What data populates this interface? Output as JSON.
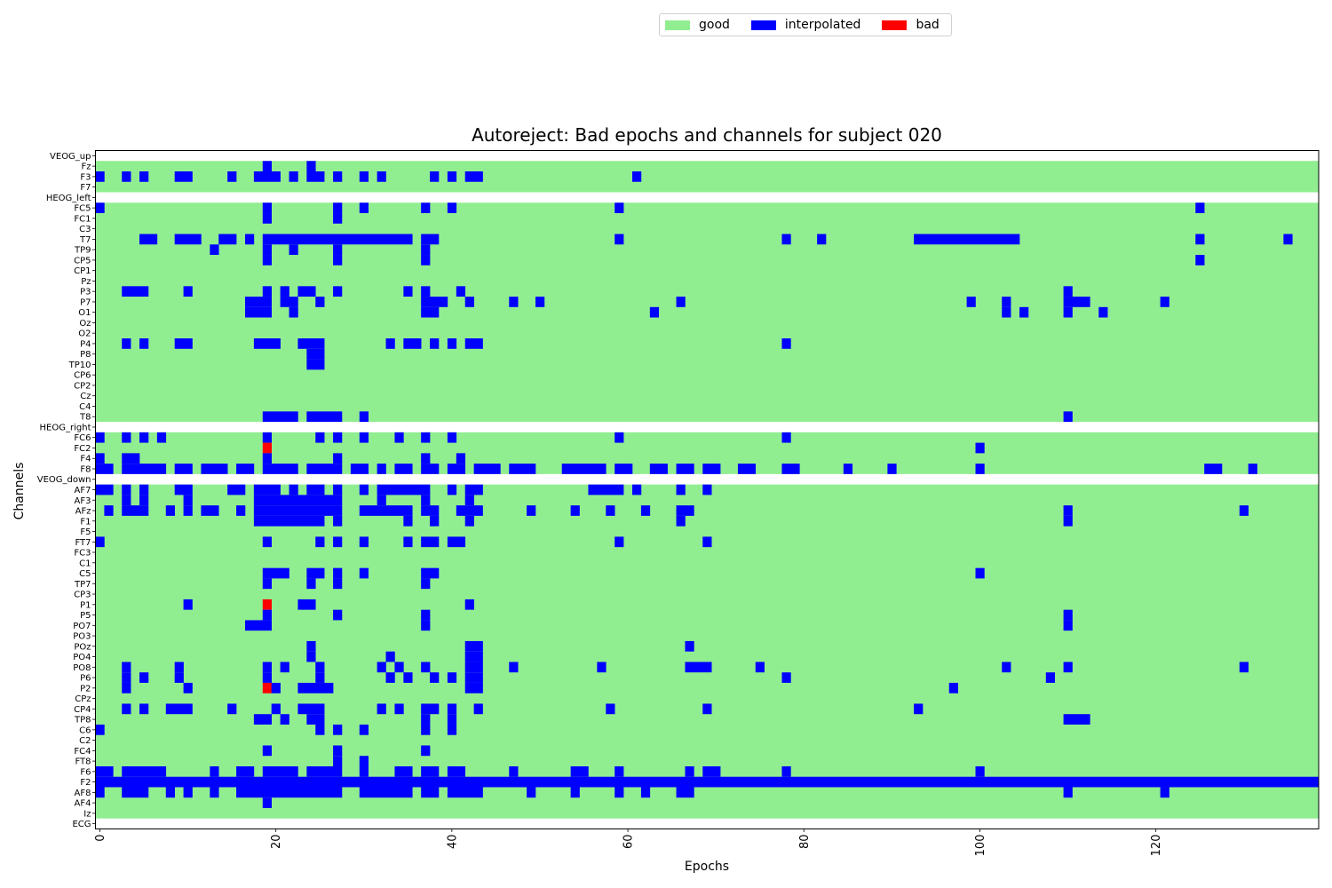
{
  "legend": {
    "items": [
      {
        "label": "good",
        "color": "#90ee90"
      },
      {
        "label": "interpolated",
        "color": "#0000ff"
      },
      {
        "label": "bad",
        "color": "#ff0000"
      }
    ]
  },
  "chart_data": {
    "type": "heatmap",
    "title": "Autoreject: Bad epochs and channels for subject 020",
    "xlabel": "Epochs",
    "ylabel": "Channels",
    "n_epochs": 139,
    "x_ticks": [
      0,
      20,
      40,
      60,
      80,
      100,
      120
    ],
    "channels": [
      "VEOG_up",
      "Fz",
      "F3",
      "F7",
      "HEOG_left",
      "FC5",
      "FC1",
      "C3",
      "T7",
      "TP9",
      "CP5",
      "CP1",
      "Pz",
      "P3",
      "P7",
      "O1",
      "Oz",
      "O2",
      "P4",
      "P8",
      "TP10",
      "CP6",
      "CP2",
      "Cz",
      "C4",
      "T8",
      "HEOG_right",
      "FC6",
      "FC2",
      "F4",
      "F8",
      "VEOG_down",
      "AF7",
      "AF3",
      "AFz",
      "F1",
      "F5",
      "FT7",
      "FC3",
      "C1",
      "C5",
      "TP7",
      "CP3",
      "P1",
      "P5",
      "PO7",
      "PO3",
      "POz",
      "PO4",
      "PO8",
      "P6",
      "P2",
      "CPz",
      "CP4",
      "TP8",
      "C6",
      "C2",
      "FC4",
      "FT8",
      "F6",
      "F2",
      "AF8",
      "AF4",
      "Iz",
      "ECG"
    ],
    "colors": {
      "good": "#90ee90",
      "interpolated": "#0000ff",
      "bad": "#ff0000",
      "excluded": "#ffffff"
    },
    "excluded_channels": [
      "VEOG_up",
      "HEOG_left",
      "HEOG_right",
      "VEOG_down",
      "ECG"
    ],
    "interpolated": {
      "Fz": [
        19,
        24
      ],
      "F3": [
        0,
        3,
        5,
        9,
        10,
        15,
        18,
        19,
        20,
        22,
        24,
        25,
        27,
        30,
        32,
        38,
        40,
        42,
        43,
        61
      ],
      "FC5": [
        0,
        19,
        27,
        30,
        37,
        40,
        59,
        125
      ],
      "FC1": [
        19,
        27
      ],
      "T7": [
        5,
        6,
        9,
        10,
        11,
        14,
        15,
        17,
        19,
        "20-35",
        37,
        38,
        59,
        78,
        82,
        "93-104",
        125,
        135
      ],
      "TP9": [
        13,
        19,
        22,
        27,
        37
      ],
      "CP5": [
        19,
        27,
        37,
        125
      ],
      "P3": [
        3,
        4,
        5,
        10,
        19,
        21,
        23,
        24,
        27,
        35,
        37,
        41,
        110
      ],
      "P7": [
        17,
        18,
        19,
        21,
        22,
        25,
        37,
        38,
        39,
        42,
        47,
        50,
        66,
        99,
        103,
        110,
        111,
        112,
        121
      ],
      "O1": [
        17,
        18,
        19,
        22,
        37,
        38,
        63,
        103,
        105,
        110,
        114
      ],
      "P4": [
        3,
        5,
        9,
        10,
        18,
        19,
        20,
        23,
        24,
        25,
        33,
        35,
        36,
        38,
        40,
        42,
        43,
        78
      ],
      "P8": [
        24,
        25
      ],
      "TP10": [
        24,
        25
      ],
      "T8": [
        19,
        20,
        21,
        22,
        24,
        25,
        26,
        27,
        30,
        110
      ],
      "FC6": [
        0,
        3,
        5,
        7,
        19,
        25,
        27,
        30,
        34,
        37,
        40,
        59,
        78
      ],
      "FC2": [
        19,
        100
      ],
      "F4": [
        0,
        3,
        4,
        19,
        27,
        37,
        41
      ],
      "F8": [
        0,
        1,
        3,
        4,
        5,
        6,
        7,
        9,
        10,
        12,
        13,
        14,
        16,
        17,
        19,
        20,
        21,
        22,
        24,
        25,
        26,
        27,
        29,
        30,
        32,
        34,
        35,
        37,
        38,
        40,
        41,
        43,
        44,
        45,
        47,
        48,
        49,
        53,
        54,
        55,
        56,
        57,
        59,
        60,
        63,
        64,
        66,
        67,
        69,
        70,
        73,
        74,
        78,
        79,
        85,
        90,
        100,
        126,
        127,
        131
      ],
      "AF7": [
        0,
        1,
        3,
        5,
        9,
        10,
        15,
        16,
        18,
        19,
        20,
        22,
        24,
        25,
        27,
        30,
        32,
        33,
        34,
        35,
        36,
        37,
        40,
        42,
        43,
        56,
        57,
        58,
        59,
        61,
        66,
        69
      ],
      "AF3": [
        3,
        5,
        10,
        "18-26",
        27,
        32,
        37,
        42
      ],
      "AFz": [
        1,
        3,
        4,
        5,
        8,
        10,
        12,
        13,
        16,
        "18-25",
        26,
        27,
        30,
        31,
        32,
        33,
        34,
        35,
        37,
        38,
        41,
        42,
        43,
        49,
        54,
        58,
        62,
        66,
        67,
        110,
        130
      ],
      "F1": [
        "18-25",
        27,
        35,
        38,
        42,
        66,
        110
      ],
      "FT7": [
        0,
        19,
        25,
        27,
        30,
        35,
        37,
        38,
        40,
        41,
        59,
        69
      ],
      "C5": [
        19,
        20,
        21,
        24,
        25,
        27,
        30,
        37,
        38,
        100
      ],
      "TP7": [
        19,
        24,
        27,
        37
      ],
      "P1": [
        10,
        19,
        23,
        24,
        42
      ],
      "P5": [
        19,
        27,
        37,
        110
      ],
      "PO7": [
        17,
        18,
        19,
        37,
        110
      ],
      "POz": [
        24,
        42,
        43,
        67
      ],
      "PO4": [
        24,
        33,
        42,
        43
      ],
      "PO8": [
        3,
        9,
        19,
        21,
        25,
        32,
        34,
        37,
        42,
        43,
        47,
        57,
        67,
        68,
        69,
        75,
        103,
        110,
        130
      ],
      "P6": [
        3,
        5,
        9,
        19,
        25,
        33,
        35,
        38,
        40,
        42,
        43,
        78,
        108
      ],
      "P2": [
        3,
        10,
        20,
        23,
        24,
        25,
        26,
        42,
        43,
        97
      ],
      "CP4": [
        3,
        5,
        8,
        9,
        10,
        15,
        20,
        23,
        24,
        25,
        32,
        34,
        37,
        38,
        40,
        43,
        58,
        69,
        93
      ],
      "TP8": [
        18,
        19,
        21,
        24,
        25,
        37,
        40,
        110,
        111,
        112
      ],
      "C6": [
        0,
        25,
        27,
        30,
        37,
        40
      ],
      "FC4": [
        19,
        27,
        37
      ],
      "FT8": [
        27,
        30
      ],
      "F6": [
        0,
        1,
        3,
        4,
        5,
        6,
        7,
        13,
        16,
        17,
        19,
        20,
        21,
        22,
        24,
        25,
        26,
        27,
        30,
        34,
        35,
        37,
        38,
        40,
        41,
        47,
        54,
        55,
        59,
        67,
        69,
        70,
        78,
        100
      ],
      "F2": [
        "0-138"
      ],
      "AF8": [
        0,
        3,
        4,
        5,
        8,
        10,
        13,
        16,
        17,
        "18-27",
        "30-35",
        37,
        38,
        40,
        41,
        42,
        43,
        49,
        54,
        59,
        62,
        66,
        67,
        110,
        121
      ],
      "AF4": [
        19
      ]
    },
    "bad": {
      "FC2": [
        19
      ],
      "P1": [
        19
      ],
      "P2": [
        19
      ]
    }
  }
}
